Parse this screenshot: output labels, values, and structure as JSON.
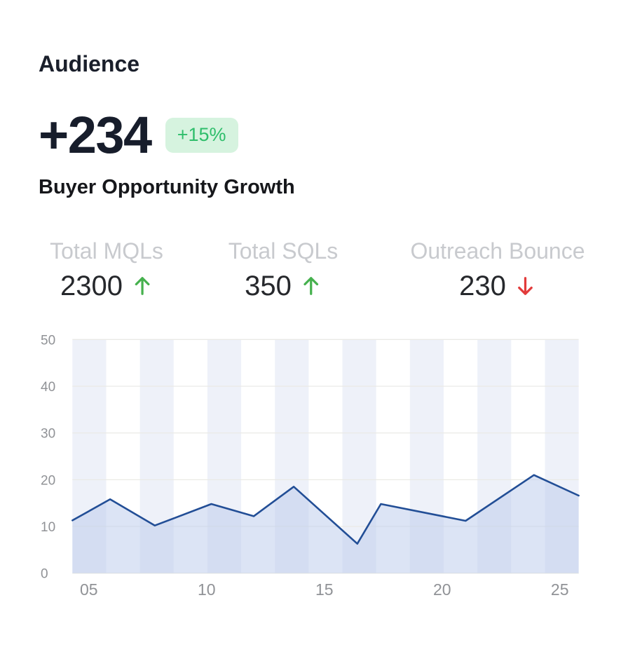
{
  "header": {
    "title": "Audience",
    "metric_value": "+234",
    "metric_change": "+15%",
    "subtitle": "Buyer Opportunity Growth"
  },
  "stats": {
    "items": [
      {
        "label": "Total MQLs",
        "value": "2300",
        "trend": "up"
      },
      {
        "label": "Total SQLs",
        "value": "350",
        "trend": "up"
      },
      {
        "label": "Outreach Bounce",
        "value": "230",
        "trend": "down"
      }
    ]
  },
  "colors": {
    "badge_bg": "#D6F3DF",
    "badge_text": "#2EBE6B",
    "trend_up": "#46B14E",
    "trend_down": "#E23B3B",
    "line": "#224E96",
    "area_fill": "rgba(185,201,235,0.5)",
    "band": "#EEF1F9",
    "gridline": "#EAEAE6",
    "axis_label": "#909296"
  },
  "chart_data": {
    "type": "area",
    "title": "",
    "series_name": "Buyer Opportunity Growth",
    "x": [
      4.3,
      5.9,
      7.8,
      10.2,
      12.0,
      13.7,
      16.4,
      17.4,
      21.0,
      23.9,
      25.8
    ],
    "values": [
      11.3,
      15.8,
      10.2,
      14.8,
      12.2,
      18.5,
      6.3,
      14.8,
      11.2,
      21.0,
      16.6
    ],
    "xlim": [
      4.3,
      25.8
    ],
    "ylim": [
      0,
      50
    ],
    "xticks": [
      {
        "value": 5,
        "label": "05"
      },
      {
        "value": 10,
        "label": "10"
      },
      {
        "value": 15,
        "label": "15"
      },
      {
        "value": 20,
        "label": "20"
      },
      {
        "value": 25,
        "label": "25"
      }
    ],
    "yticks": [
      0,
      10,
      20,
      30,
      40,
      50
    ],
    "grid": "horizontal",
    "background_bands": true,
    "legend": false
  }
}
